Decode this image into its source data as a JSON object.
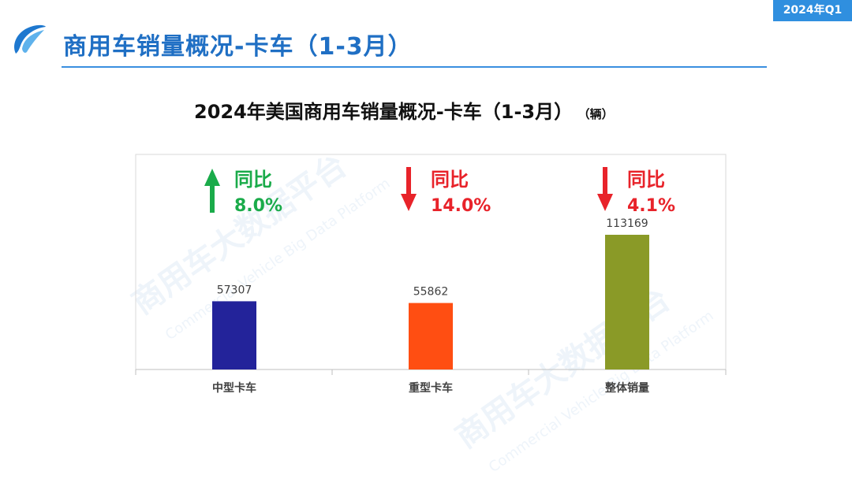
{
  "period_badge": "2024年Q1",
  "page_title": "商用车销量概况-卡车（1-3月）",
  "chart_data": {
    "type": "bar",
    "title": "2024年美国商用车销量概况-卡车（1-3月）",
    "unit": "（辆）",
    "categories": [
      "中型卡车",
      "重型卡车",
      "整体销量"
    ],
    "values": [
      57307,
      55862,
      113169
    ],
    "bar_colors": [
      "#23239a",
      "#ff4e12",
      "#8a9a27"
    ],
    "yoy_label": "同比",
    "yoy_changes": [
      "8.0%",
      "14.0%",
      "4.1%"
    ],
    "yoy_direction": [
      "up",
      "down",
      "down"
    ],
    "up_color": "#1aab4a",
    "down_color": "#e8232a",
    "ylim": [
      0,
      113169
    ],
    "grid": false
  },
  "watermark": {
    "cn": "商用车大数据平台",
    "en": "Commercial Vehicle Big Data Platform"
  }
}
